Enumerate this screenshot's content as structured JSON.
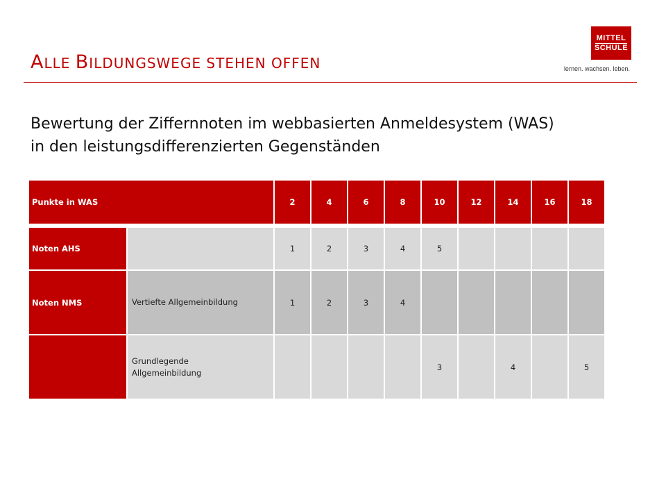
{
  "header": {
    "title_parts": [
      {
        "text": "A",
        "size": "big"
      },
      {
        "text": "LLE ",
        "size": "small"
      },
      {
        "text": "B",
        "size": "big"
      },
      {
        "text": "ILDUNGSWEGE STEHEN OFFEN",
        "size": "small"
      }
    ]
  },
  "logo": {
    "line1": "MITTEL",
    "line2": "SCHULE",
    "tagline": "lernen. wachsen. leben."
  },
  "subtitle": {
    "line1": "Bewertung der Ziffernnoten im webbasierten Anmeldesystem (WAS)",
    "line2": "in den leistungsdifferenzierten Gegenständen"
  },
  "table": {
    "header_label": "Punkte in WAS",
    "points": [
      "2",
      "4",
      "6",
      "8",
      "10",
      "12",
      "14",
      "16",
      "18"
    ],
    "rows": [
      {
        "label": "Noten AHS",
        "desc": "",
        "cells": [
          "1",
          "2",
          "3",
          "4",
          "5",
          "",
          "",
          "",
          ""
        ]
      },
      {
        "label": "Noten NMS",
        "desc": "Vertiefte Allgemeinbildung",
        "cells": [
          "1",
          "2",
          "3",
          "4",
          "",
          "",
          "",
          "",
          ""
        ]
      },
      {
        "label": "",
        "desc": "Grundlegende Allgemeinbildung",
        "cells": [
          "",
          "",
          "",
          "",
          "3",
          "",
          "4",
          "",
          "5"
        ]
      }
    ]
  },
  "colors": {
    "accent": "#c00000",
    "cell_light": "#d9d9d9",
    "cell_mid": "#c0c0c0"
  }
}
